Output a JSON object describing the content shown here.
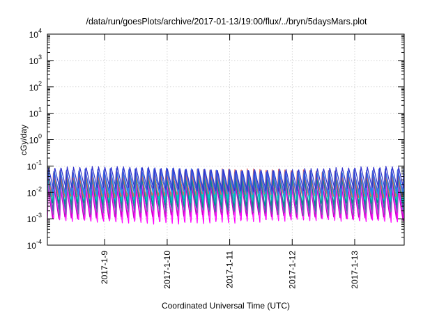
{
  "chart_data": {
    "type": "line",
    "title": "/data/run/goesPlots/archive/2017-01-13/19:00/flux/../bryn/5daysMars.plot",
    "xlabel": "Coordinated Universal Time (UTC)",
    "ylabel": "cGy/day",
    "yscale": "log",
    "ylim": [
      0.0001,
      10000
    ],
    "xlim": [
      "2017-01-08T02:00",
      "2017-01-13T19:00"
    ],
    "grid": true,
    "legend": "none",
    "y_ticks": [
      {
        "base": "10",
        "exp": "-4",
        "value": 0.0001
      },
      {
        "base": "10",
        "exp": "-3",
        "value": 0.001
      },
      {
        "base": "10",
        "exp": "-2",
        "value": 0.01
      },
      {
        "base": "10",
        "exp": "-1",
        "value": 0.1
      },
      {
        "base": "10",
        "exp": "0",
        "value": 1
      },
      {
        "base": "10",
        "exp": "1",
        "value": 10
      },
      {
        "base": "10",
        "exp": "2",
        "value": 100
      },
      {
        "base": "10",
        "exp": "3",
        "value": 1000
      },
      {
        "base": "10",
        "exp": "4",
        "value": 10000
      }
    ],
    "x_ticks": [
      {
        "label": "2017-1-9",
        "date": "2017-01-09T00:00"
      },
      {
        "label": "2017-1-10",
        "date": "2017-01-10T00:00"
      },
      {
        "label": "2017-1-11",
        "date": "2017-01-11T00:00"
      },
      {
        "label": "2017-1-12",
        "date": "2017-01-12T00:00"
      },
      {
        "label": "2017-1-13",
        "date": "2017-01-13T00:00"
      }
    ],
    "oscillation_period_hours": 2.4,
    "series": [
      {
        "color": "#ff00ff",
        "peak": 0.025,
        "trough": 0.0007
      },
      {
        "color": "#ff33ff",
        "peak": 0.03,
        "trough": 0.0009
      },
      {
        "color": "#cc00cc",
        "peak": 0.022,
        "trough": 0.0011
      },
      {
        "color": "#7070b0",
        "peak": 0.04,
        "trough": 0.0015
      },
      {
        "color": "#3a6ea5",
        "peak": 0.045,
        "trough": 0.002
      },
      {
        "color": "#008b8b",
        "peak": 0.05,
        "trough": 0.003
      },
      {
        "color": "#00b3b3",
        "peak": 0.055,
        "trough": 0.004
      },
      {
        "color": "#00c8c8",
        "peak": 0.06,
        "trough": 0.0055
      },
      {
        "color": "#e06060",
        "peak": 0.07,
        "trough": 0.007
      },
      {
        "color": "#1e90ff",
        "peak": 0.065,
        "trough": 0.008
      },
      {
        "color": "#4169e1",
        "peak": 0.075,
        "trough": 0.01
      },
      {
        "color": "#3333cc",
        "peak": 0.085,
        "trough": 0.012
      }
    ]
  }
}
